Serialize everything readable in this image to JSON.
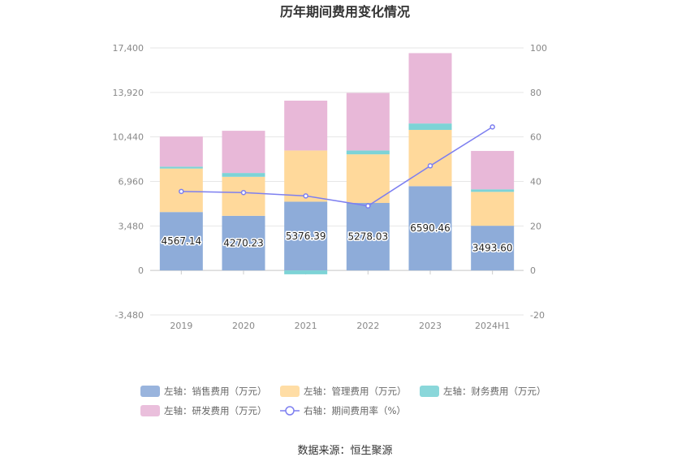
{
  "chart_data": {
    "type": "bar",
    "title": "历年期间费用变化情况",
    "source": "数据来源：恒生聚源",
    "categories": [
      "2019",
      "2020",
      "2021",
      "2022",
      "2023",
      "2024H1"
    ],
    "left_axis": {
      "min": -3480,
      "max": 17400,
      "ticks": [
        "-3,480",
        "0",
        "3,480",
        "6,960",
        "10,440",
        "13,920",
        "17,400"
      ]
    },
    "right_axis": {
      "min": -20,
      "max": 100,
      "ticks": [
        "-20",
        "0",
        "20",
        "40",
        "60",
        "80",
        "100"
      ]
    },
    "series": [
      {
        "name": "左轴：销售费用（万元）",
        "color": "#8eacd9",
        "values": [
          4567.14,
          4270.23,
          5376.39,
          5278.03,
          6590.46,
          3493.6
        ],
        "labels": [
          "4567.14",
          "4270.23",
          "5376.39",
          "5278.03",
          "6590.46",
          "3493.60"
        ]
      },
      {
        "name": "左轴：管理费用（万元）",
        "color": "#ffd99b",
        "values": [
          3400,
          3050,
          4000,
          3800,
          4400,
          2650
        ]
      },
      {
        "name": "左轴：财务费用（万元）",
        "color": "#7dd3d6",
        "values": [
          150,
          300,
          -300,
          300,
          500,
          200
        ]
      },
      {
        "name": "左轴：研发费用（万元）",
        "color": "#e8b8d8",
        "values": [
          2350,
          3300,
          3900,
          4500,
          5500,
          3000
        ]
      },
      {
        "name": "右轴：期间费用率（%）",
        "color": "#7d7ff0",
        "axis": "right",
        "values": [
          35.5,
          35,
          33.5,
          29,
          47,
          64.5
        ]
      }
    ],
    "legend_position": "bottom",
    "grid": true
  }
}
